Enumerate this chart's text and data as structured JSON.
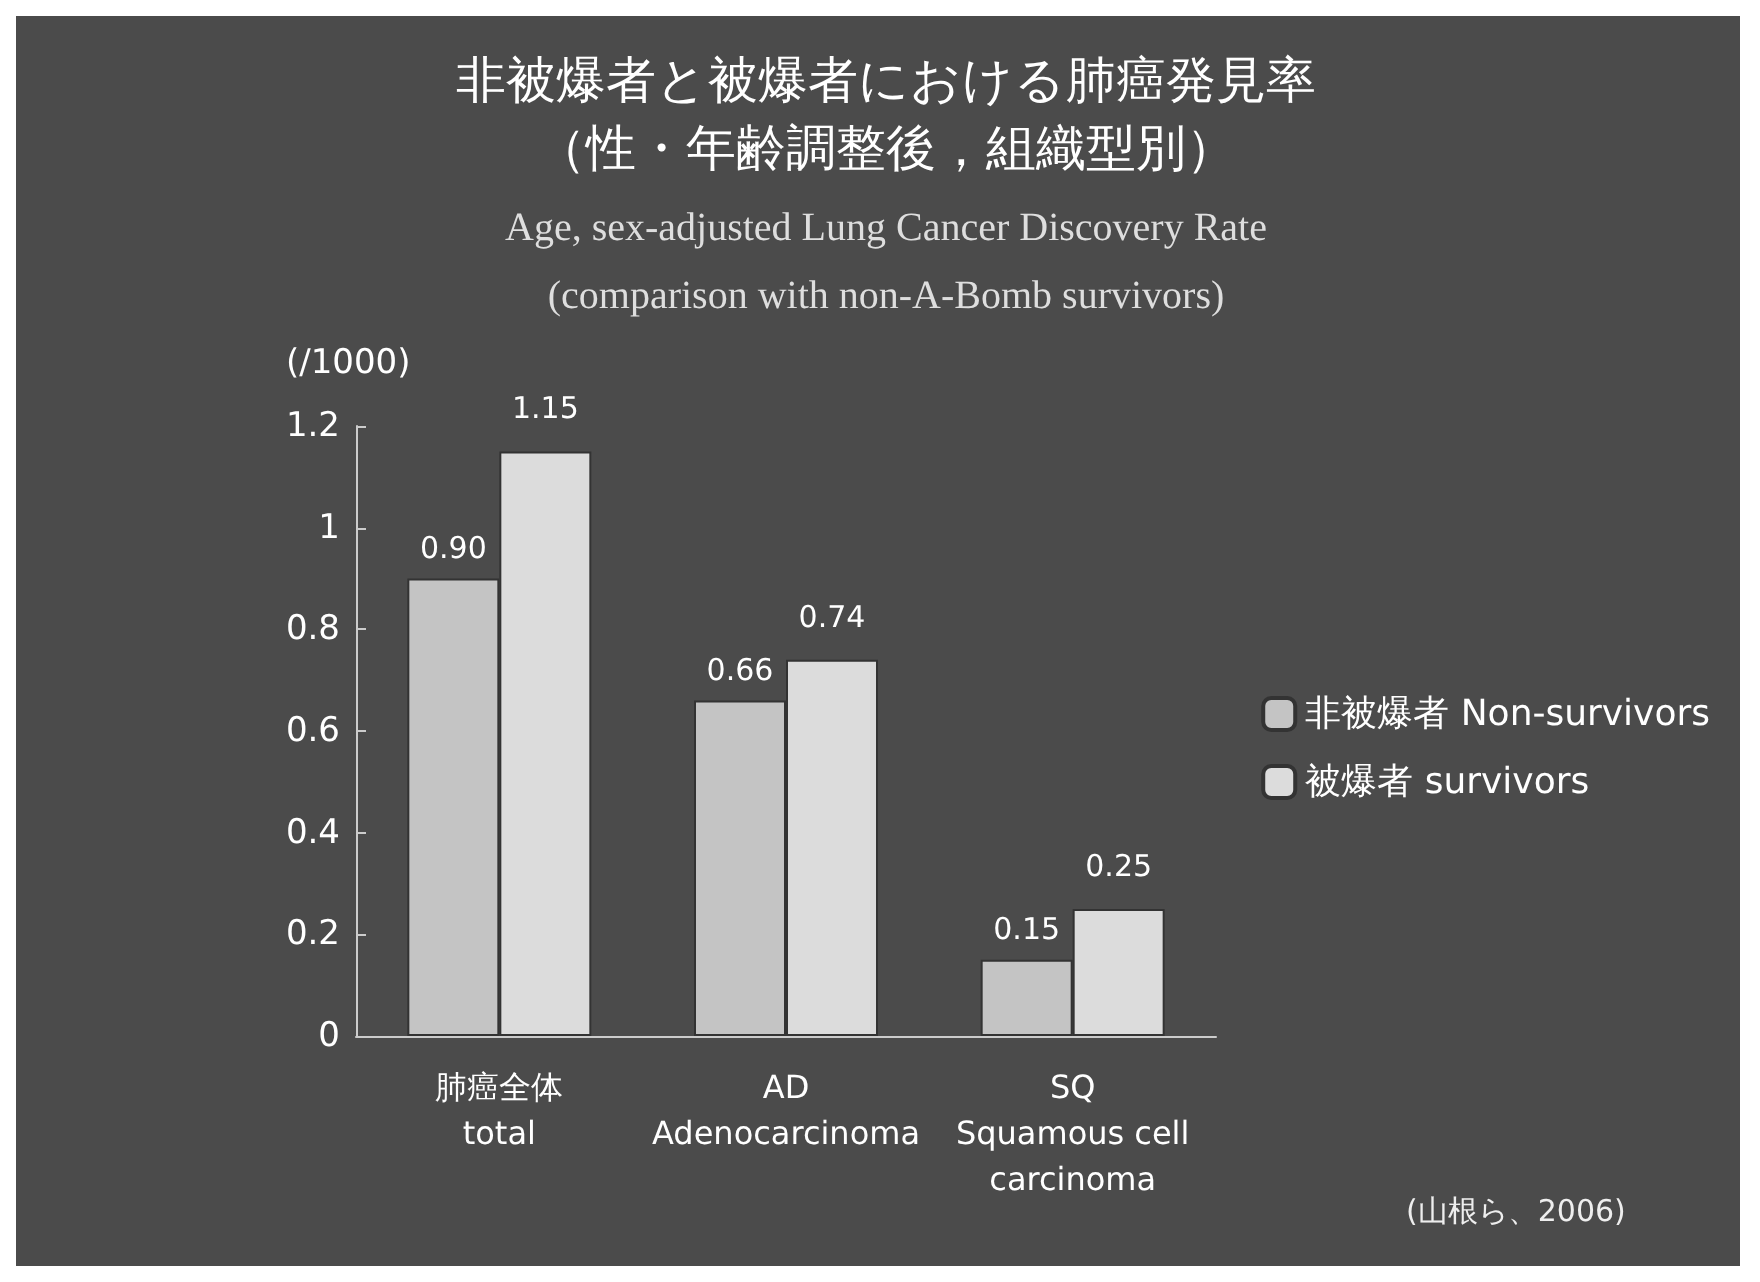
{
  "chart_data": {
    "type": "bar",
    "title": "非被爆者と被爆者における肺癌発見率（性・年齢調整後，組織型別）",
    "subtitle": "Age, sex-adjusted Lung Cancer Discovery Rate\n(comparison with non-A-Bomb survivors)",
    "ylabel": "(/1000)",
    "categories": [
      "肺癌全体\ntotal",
      "AD\nAdenocarcinoma",
      "SQ\nSquamous cell\ncarcinoma"
    ],
    "series": [
      {
        "name": "非被爆者 Non-survivors",
        "color": "#c4c4c4",
        "values": [
          0.9,
          0.66,
          0.15
        ],
        "value_labels": [
          "0.90",
          "0.66",
          "0.15"
        ]
      },
      {
        "name": "被爆者 survivors",
        "color": "#dcdcdc",
        "values": [
          1.15,
          0.74,
          0.25
        ],
        "value_labels": [
          "1.15",
          "0.74",
          "0.25"
        ]
      }
    ],
    "ylim": [
      0,
      1.2
    ],
    "yticks": [
      0,
      0.2,
      0.4,
      0.6,
      0.8,
      1,
      1.2
    ],
    "grid": false,
    "legend": "right",
    "annotations": [
      "(山根ら、2006)"
    ]
  }
}
